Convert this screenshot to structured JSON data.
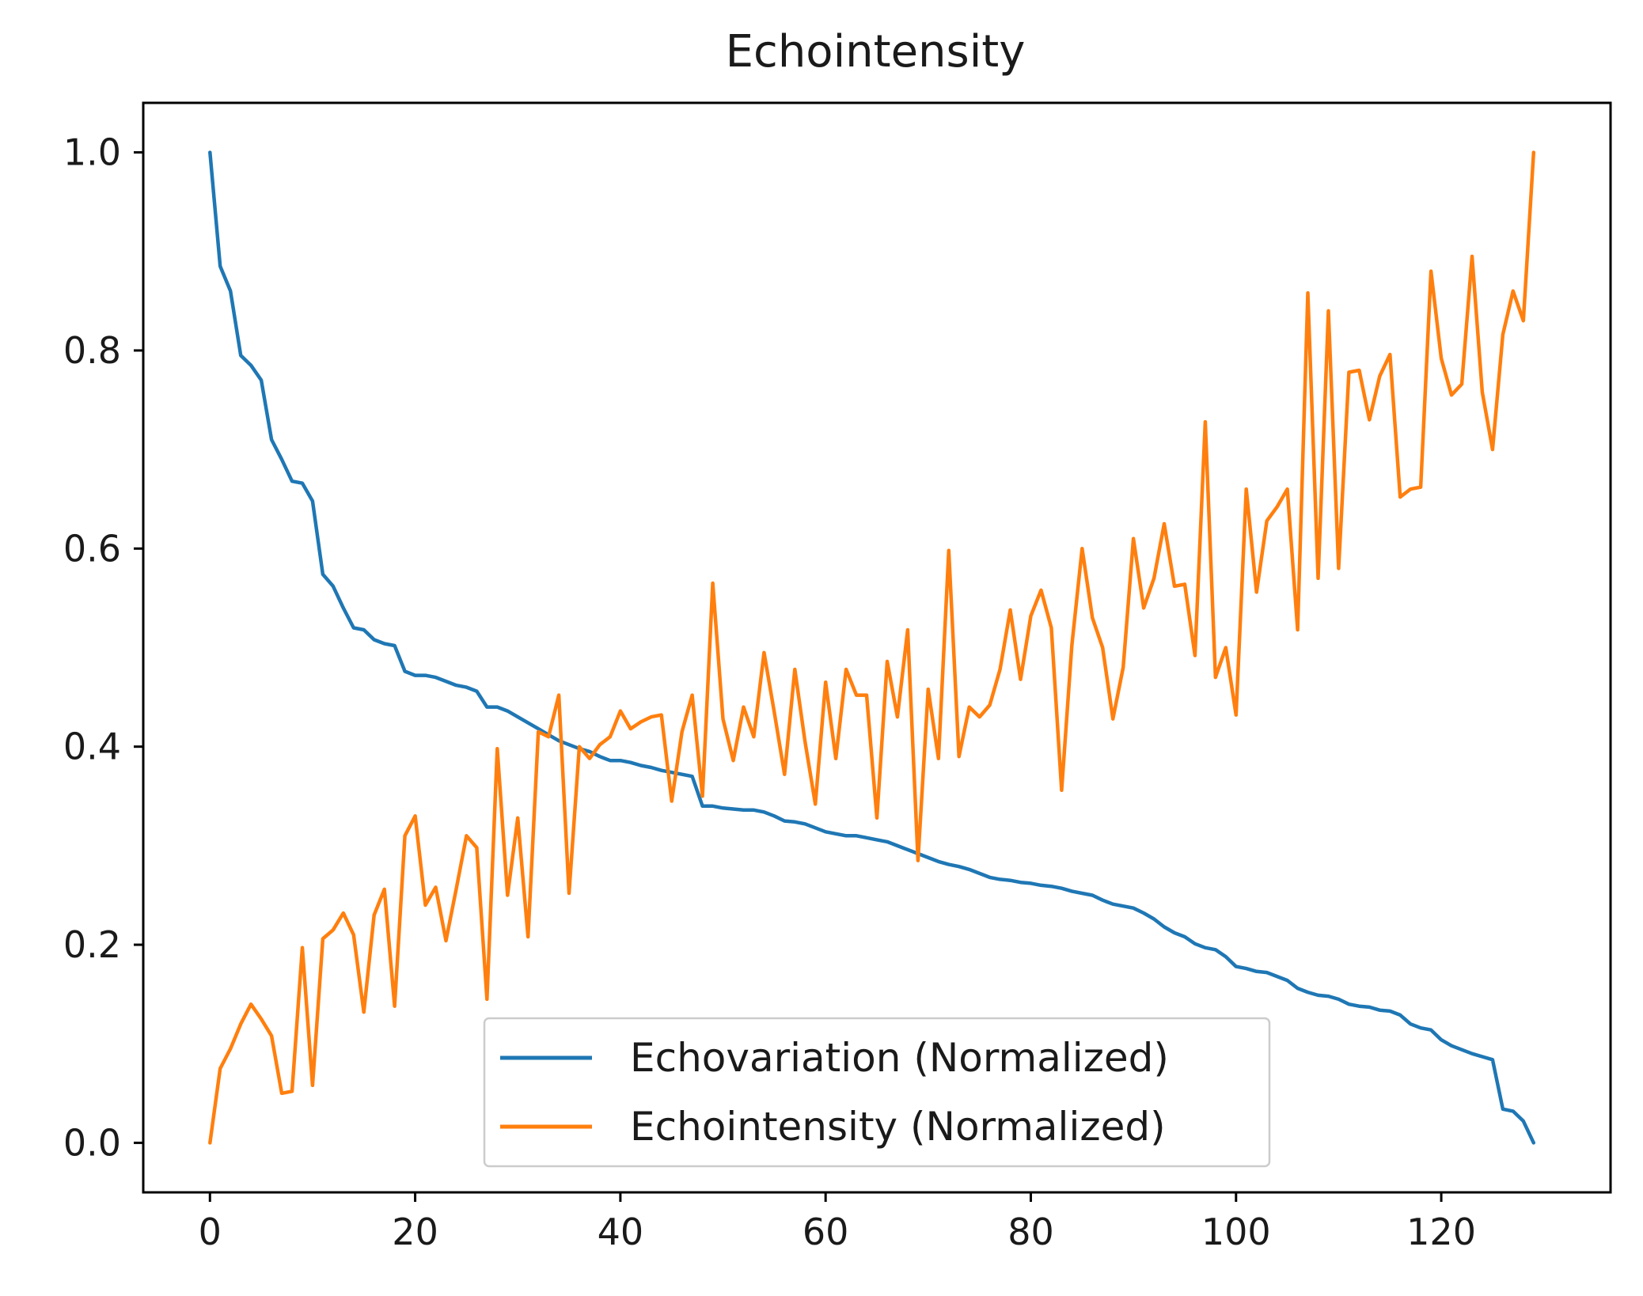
{
  "chart_data": {
    "type": "line",
    "title": "Echointensity",
    "xlabel": "",
    "ylabel": "",
    "xlim": [
      -6.5,
      136.5
    ],
    "ylim": [
      -0.05,
      1.05
    ],
    "grid": false,
    "legend_position": "lower-center",
    "x_ticks": [
      0,
      20,
      40,
      60,
      80,
      100,
      120
    ],
    "x_tick_labels": [
      "0",
      "20",
      "40",
      "60",
      "80",
      "100",
      "120"
    ],
    "y_ticks": [
      0.0,
      0.2,
      0.4,
      0.6,
      0.8,
      1.0
    ],
    "y_tick_labels": [
      "0.0",
      "0.2",
      "0.4",
      "0.6",
      "0.8",
      "1.0"
    ],
    "series": [
      {
        "name": "Echovariation (Normalized)",
        "color": "#1f77b4",
        "values": [
          1.0,
          0.885,
          0.86,
          0.795,
          0.785,
          0.77,
          0.71,
          0.69,
          0.668,
          0.666,
          0.648,
          0.574,
          0.562,
          0.54,
          0.52,
          0.518,
          0.508,
          0.504,
          0.502,
          0.476,
          0.472,
          0.472,
          0.47,
          0.466,
          0.462,
          0.46,
          0.456,
          0.44,
          0.44,
          0.436,
          0.43,
          0.424,
          0.418,
          0.412,
          0.406,
          0.402,
          0.398,
          0.395,
          0.39,
          0.386,
          0.386,
          0.384,
          0.381,
          0.379,
          0.376,
          0.374,
          0.372,
          0.37,
          0.34,
          0.34,
          0.338,
          0.337,
          0.336,
          0.336,
          0.334,
          0.33,
          0.325,
          0.324,
          0.322,
          0.318,
          0.314,
          0.312,
          0.31,
          0.31,
          0.308,
          0.306,
          0.304,
          0.3,
          0.296,
          0.292,
          0.288,
          0.284,
          0.281,
          0.279,
          0.276,
          0.272,
          0.268,
          0.266,
          0.265,
          0.263,
          0.262,
          0.26,
          0.259,
          0.257,
          0.254,
          0.252,
          0.25,
          0.245,
          0.241,
          0.239,
          0.237,
          0.232,
          0.226,
          0.218,
          0.212,
          0.208,
          0.201,
          0.197,
          0.195,
          0.188,
          0.178,
          0.176,
          0.173,
          0.172,
          0.168,
          0.164,
          0.156,
          0.152,
          0.149,
          0.148,
          0.145,
          0.14,
          0.138,
          0.137,
          0.134,
          0.133,
          0.129,
          0.12,
          0.116,
          0.114,
          0.104,
          0.098,
          0.094,
          0.09,
          0.087,
          0.084,
          0.034,
          0.032,
          0.022,
          0.0
        ]
      },
      {
        "name": "Echointensity (Normalized)",
        "color": "#ff7f0e",
        "values": [
          0.0,
          0.075,
          0.095,
          0.12,
          0.14,
          0.125,
          0.108,
          0.05,
          0.052,
          0.197,
          0.058,
          0.206,
          0.215,
          0.232,
          0.21,
          0.132,
          0.23,
          0.256,
          0.138,
          0.31,
          0.33,
          0.24,
          0.258,
          0.204,
          0.256,
          0.31,
          0.298,
          0.145,
          0.398,
          0.25,
          0.328,
          0.208,
          0.415,
          0.41,
          0.452,
          0.252,
          0.4,
          0.388,
          0.402,
          0.41,
          0.436,
          0.418,
          0.425,
          0.43,
          0.432,
          0.345,
          0.415,
          0.452,
          0.35,
          0.565,
          0.428,
          0.386,
          0.44,
          0.41,
          0.495,
          0.435,
          0.372,
          0.478,
          0.405,
          0.342,
          0.465,
          0.388,
          0.478,
          0.452,
          0.452,
          0.328,
          0.486,
          0.43,
          0.518,
          0.285,
          0.458,
          0.388,
          0.598,
          0.39,
          0.44,
          0.43,
          0.442,
          0.478,
          0.538,
          0.468,
          0.532,
          0.558,
          0.52,
          0.356,
          0.502,
          0.6,
          0.53,
          0.5,
          0.428,
          0.48,
          0.61,
          0.54,
          0.57,
          0.625,
          0.562,
          0.564,
          0.492,
          0.728,
          0.47,
          0.5,
          0.432,
          0.66,
          0.556,
          0.628,
          0.642,
          0.66,
          0.518,
          0.858,
          0.57,
          0.84,
          0.58,
          0.778,
          0.78,
          0.73,
          0.774,
          0.796,
          0.652,
          0.66,
          0.662,
          0.88,
          0.792,
          0.755,
          0.766,
          0.895,
          0.758,
          0.7,
          0.816,
          0.86,
          0.83,
          1.0
        ]
      }
    ]
  }
}
